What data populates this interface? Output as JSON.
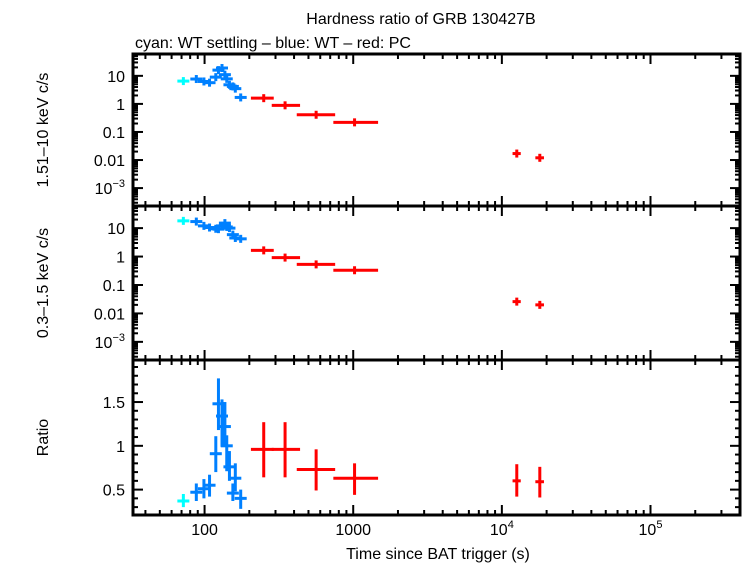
{
  "chart_data": {
    "type": "scatter",
    "title": "Hardness ratio of GRB 130427B",
    "subtitle": "cyan: WT settling – blue: WT – red: PC",
    "xlabel": "Time since BAT trigger (s)",
    "xscale": "log",
    "xlim": [
      33,
      400000
    ],
    "xticks": [
      {
        "v": 100,
        "b": "100",
        "e": ""
      },
      {
        "v": 1000,
        "b": "1000",
        "e": ""
      },
      {
        "v": 10000,
        "b": "10",
        "e": "4"
      },
      {
        "v": 100000,
        "b": "10",
        "e": "5"
      }
    ],
    "colors": {
      "wt_settling": "#00ffff",
      "wt": "#0080ff",
      "pc": "#ff0000"
    },
    "panels": [
      {
        "ylabel": "1.51–10 keV c/s",
        "yscale": "log",
        "ylim": [
          0.00023,
          60
        ],
        "yticks": [
          {
            "v": 10,
            "b": "10",
            "e": ""
          },
          {
            "v": 1,
            "b": "1",
            "e": ""
          },
          {
            "v": 0.1,
            "b": "0.1",
            "e": ""
          },
          {
            "v": 0.01,
            "b": "0.01",
            "e": ""
          },
          {
            "v": 0.001,
            "b": "10",
            "e": "−3"
          }
        ],
        "series": [
          {
            "mode": "WT settling",
            "color": "#00ffff",
            "x": [
              72
            ],
            "y": [
              6.5
            ]
          },
          {
            "mode": "WT",
            "color": "#0080ff",
            "x": [
              88,
              99,
              108,
              119,
              124,
              131,
              137,
              141,
              147,
              155,
              161,
              175
            ],
            "y": [
              7.7,
              6.3,
              5.7,
              9.0,
              16,
              19,
              11,
              7.8,
              4.8,
              4.2,
              3.5,
              1.7
            ]
          },
          {
            "mode": "PC",
            "color": "#ff0000",
            "x": [
              250,
              348,
              563,
              1021,
              12600,
              18000
            ],
            "xlo": [
              205,
              283,
              417,
              735,
              11800,
              16800
            ],
            "xhi": [
              292,
              439,
              756,
              1470,
              13400,
              19200
            ],
            "y": [
              1.6,
              0.89,
              0.41,
              0.22,
              0.017,
              0.012
            ]
          }
        ]
      },
      {
        "ylabel": "0.3–1.5 keV c/s",
        "yscale": "log",
        "ylim": [
          0.00023,
          60
        ],
        "yticks": [
          {
            "v": 10,
            "b": "10",
            "e": ""
          },
          {
            "v": 1,
            "b": "1",
            "e": ""
          },
          {
            "v": 0.1,
            "b": "0.1",
            "e": ""
          },
          {
            "v": 0.01,
            "b": "0.01",
            "e": ""
          },
          {
            "v": 0.001,
            "b": "10",
            "e": "−3"
          }
        ],
        "series": [
          {
            "mode": "WT settling",
            "color": "#00ffff",
            "x": [
              72
            ],
            "y": [
              18
            ]
          },
          {
            "mode": "WT",
            "color": "#0080ff",
            "x": [
              88,
              99,
              108,
              119,
              124,
              131,
              137,
              141,
              147,
              155,
              161,
              175
            ],
            "y": [
              17,
              12,
              10.5,
              9.5,
              9.2,
              12,
              15,
              11,
              10,
              5.9,
              4.5,
              4.2
            ]
          },
          {
            "mode": "PC",
            "color": "#ff0000",
            "x": [
              250,
              348,
              563,
              1021,
              12600,
              18000
            ],
            "xlo": [
              205,
              283,
              417,
              735,
              11800,
              16800
            ],
            "xhi": [
              292,
              439,
              756,
              1470,
              13400,
              19200
            ],
            "y": [
              1.65,
              0.92,
              0.53,
              0.33,
              0.026,
              0.02
            ]
          }
        ]
      },
      {
        "ylabel": "Ratio",
        "yscale": "linear",
        "ylim": [
          0.21,
          1.98
        ],
        "yticks": [
          {
            "v": 1.5,
            "b": "1.5",
            "e": ""
          },
          {
            "v": 1,
            "b": "1",
            "e": ""
          },
          {
            "v": 0.5,
            "b": "0.5",
            "e": ""
          }
        ],
        "series": [
          {
            "mode": "WT settling",
            "color": "#00ffff",
            "x": [
              72
            ],
            "y": [
              0.37
            ],
            "ylo": [
              0.3
            ],
            "yhi": [
              0.45
            ]
          },
          {
            "mode": "WT",
            "color": "#0080ff",
            "x": [
              88,
              99,
              108,
              119,
              124,
              131,
              137,
              141,
              147,
              155,
              161,
              175
            ],
            "y": [
              0.47,
              0.51,
              0.55,
              0.91,
              1.48,
              1.34,
              1.22,
              1.0,
              0.76,
              0.46,
              0.63,
              0.4
            ],
            "ylo": [
              0.37,
              0.4,
              0.42,
              0.7,
              1.18,
              0.99,
              1.0,
              0.71,
              0.6,
              0.37,
              0.48,
              0.28
            ],
            "yhi": [
              0.57,
              0.62,
              0.67,
              1.11,
              1.77,
              1.53,
              1.5,
              1.12,
              0.94,
              0.57,
              0.8,
              0.5
            ]
          },
          {
            "mode": "PC",
            "color": "#ff0000",
            "x": [
              250,
              348,
              563,
              1021,
              12600,
              18000
            ],
            "xlo": [
              205,
              283,
              417,
              735,
              11800,
              16800
            ],
            "xhi": [
              292,
              439,
              756,
              1470,
              13400,
              19200
            ],
            "y": [
              0.96,
              0.96,
              0.73,
              0.63,
              0.6,
              0.59
            ],
            "ylo": [
              0.64,
              0.64,
              0.49,
              0.44,
              0.42,
              0.41
            ],
            "yhi": [
              1.27,
              1.27,
              0.96,
              0.8,
              0.79,
              0.76
            ]
          }
        ]
      }
    ]
  }
}
